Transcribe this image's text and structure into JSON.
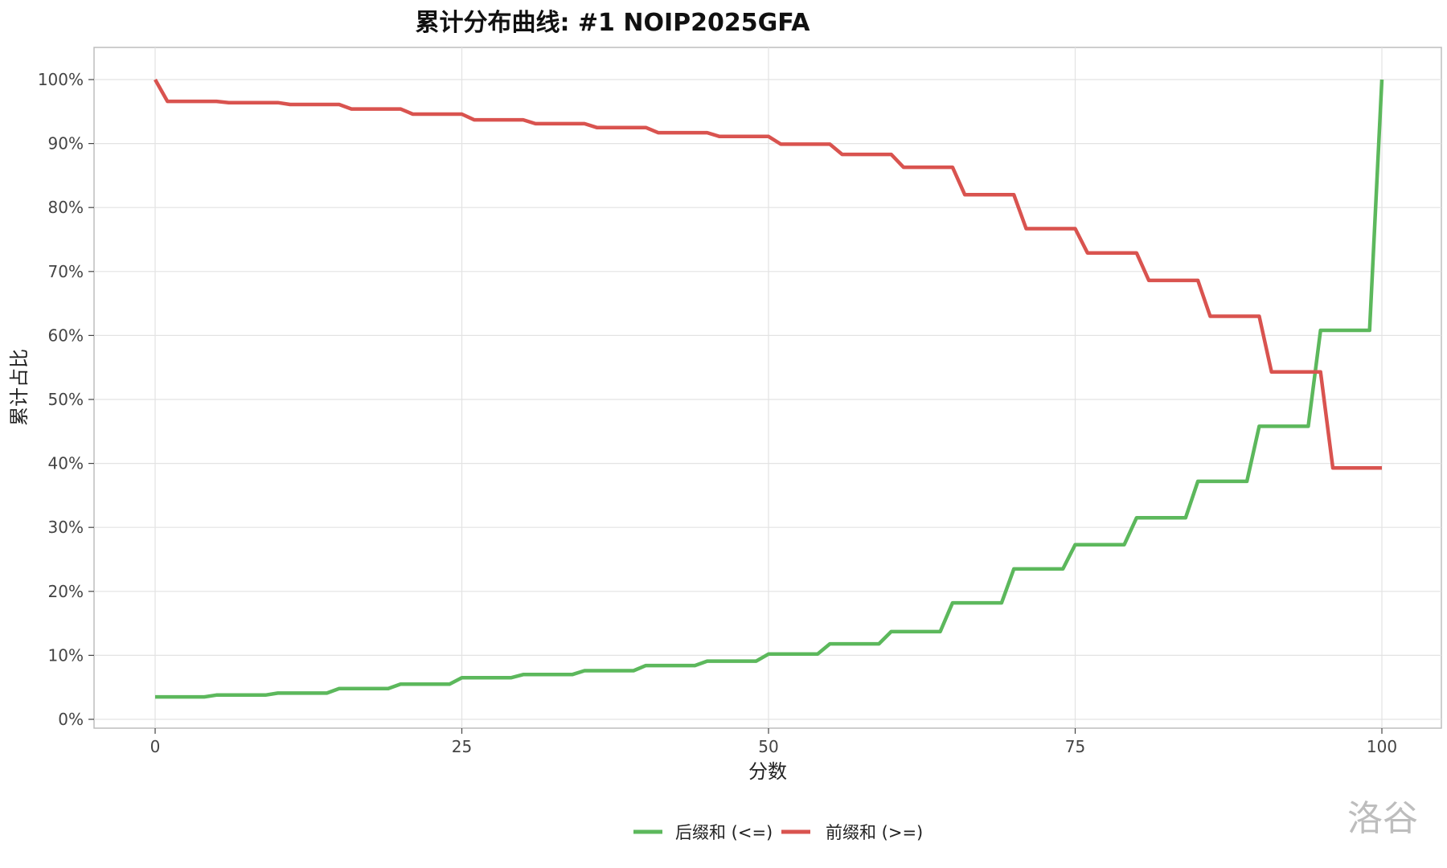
{
  "chart_data": {
    "type": "line",
    "title": "累计分布曲线: #1 NOIP2025GFA",
    "xlabel": "分数",
    "ylabel": "累计占比",
    "xlim": [
      0,
      100
    ],
    "ylim": [
      0,
      100
    ],
    "x_ticks": [
      "0",
      "25",
      "50",
      "75",
      "100"
    ],
    "y_ticks": [
      "0%",
      "10%",
      "20%",
      "30%",
      "40%",
      "50%",
      "60%",
      "70%",
      "80%",
      "90%",
      "100%"
    ],
    "grid": true,
    "legend_position": "bottom",
    "series": [
      {
        "name": "后缀和 (<=)",
        "color": "#5cb85c",
        "points": [
          [
            0,
            3.5
          ],
          [
            4,
            3.5
          ],
          [
            5,
            3.8
          ],
          [
            9,
            3.8
          ],
          [
            10,
            4.1
          ],
          [
            14,
            4.1
          ],
          [
            15,
            4.8
          ],
          [
            19,
            4.8
          ],
          [
            20,
            5.5
          ],
          [
            24,
            5.5
          ],
          [
            25,
            6.5
          ],
          [
            29,
            6.5
          ],
          [
            30,
            7.0
          ],
          [
            34,
            7.0
          ],
          [
            35,
            7.6
          ],
          [
            39,
            7.6
          ],
          [
            40,
            8.4
          ],
          [
            44,
            8.4
          ],
          [
            45,
            9.1
          ],
          [
            49,
            9.1
          ],
          [
            50,
            10.2
          ],
          [
            54,
            10.2
          ],
          [
            55,
            11.8
          ],
          [
            59,
            11.8
          ],
          [
            60,
            13.7
          ],
          [
            64,
            13.7
          ],
          [
            65,
            18.2
          ],
          [
            69,
            18.2
          ],
          [
            70,
            23.5
          ],
          [
            74,
            23.5
          ],
          [
            75,
            27.3
          ],
          [
            79,
            27.3
          ],
          [
            80,
            31.5
          ],
          [
            84,
            31.5
          ],
          [
            85,
            37.2
          ],
          [
            89,
            37.2
          ],
          [
            90,
            45.8
          ],
          [
            94,
            45.8
          ],
          [
            95,
            60.8
          ],
          [
            99,
            60.8
          ],
          [
            100,
            100
          ]
        ]
      },
      {
        "name": "前缀和 (>=)",
        "color": "#d9534f",
        "points": [
          [
            0,
            100
          ],
          [
            1,
            96.6
          ],
          [
            5,
            96.6
          ],
          [
            6,
            96.4
          ],
          [
            10,
            96.4
          ],
          [
            11,
            96.1
          ],
          [
            15,
            96.1
          ],
          [
            16,
            95.4
          ],
          [
            20,
            95.4
          ],
          [
            21,
            94.6
          ],
          [
            25,
            94.6
          ],
          [
            26,
            93.7
          ],
          [
            30,
            93.7
          ],
          [
            31,
            93.1
          ],
          [
            35,
            93.1
          ],
          [
            36,
            92.5
          ],
          [
            40,
            92.5
          ],
          [
            41,
            91.7
          ],
          [
            45,
            91.7
          ],
          [
            46,
            91.1
          ],
          [
            50,
            91.1
          ],
          [
            51,
            89.9
          ],
          [
            55,
            89.9
          ],
          [
            56,
            88.3
          ],
          [
            60,
            88.3
          ],
          [
            61,
            86.3
          ],
          [
            65,
            86.3
          ],
          [
            66,
            82.0
          ],
          [
            70,
            82.0
          ],
          [
            71,
            76.7
          ],
          [
            75,
            76.7
          ],
          [
            76,
            72.9
          ],
          [
            80,
            72.9
          ],
          [
            81,
            68.6
          ],
          [
            85,
            68.6
          ],
          [
            86,
            63.0
          ],
          [
            90,
            63.0
          ],
          [
            91,
            54.3
          ],
          [
            95,
            54.3
          ],
          [
            96,
            39.3
          ],
          [
            100,
            39.3
          ]
        ]
      }
    ]
  },
  "watermark": "洛谷"
}
